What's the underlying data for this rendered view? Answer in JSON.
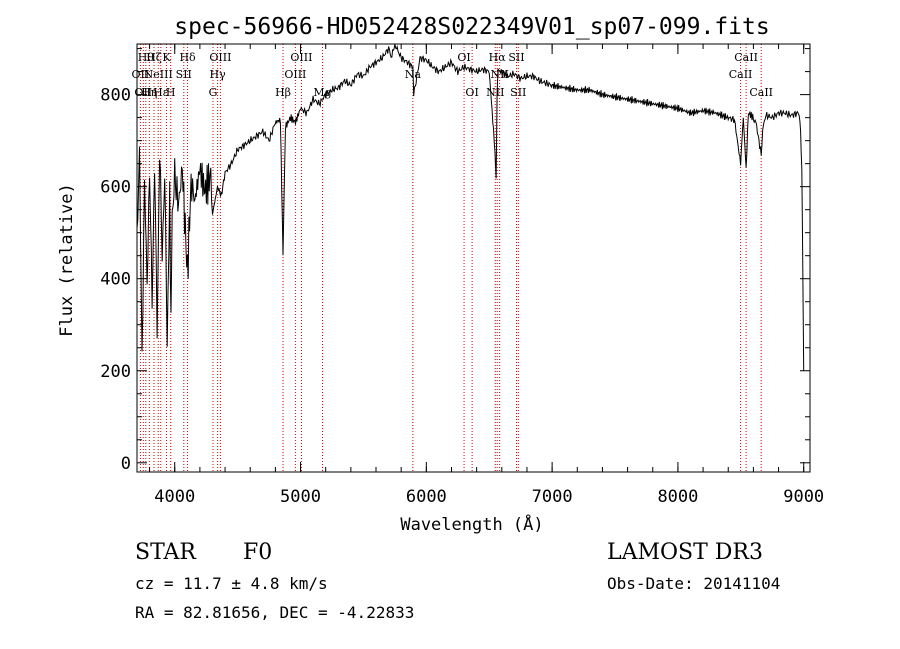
{
  "chart_data": {
    "type": "line",
    "title": "spec-56966-HD052428S022349V01_sp07-099.fits",
    "xlabel": "Wavelength (Å)",
    "ylabel": "Flux (relative)",
    "xlim": [
      3700,
      9050
    ],
    "ylim": [
      -20,
      910
    ],
    "xticks": [
      4000,
      5000,
      6000,
      7000,
      8000,
      9000
    ],
    "yticks": [
      0,
      200,
      400,
      600,
      800
    ],
    "series": [
      {
        "name": "flux",
        "x": [
          3700,
          3720,
          3740,
          3760,
          3780,
          3800,
          3820,
          3840,
          3860,
          3880,
          3900,
          3920,
          3940,
          3960,
          3970,
          3980,
          4000,
          4030,
          4060,
          4101,
          4130,
          4160,
          4200,
          4240,
          4280,
          4300,
          4340,
          4370,
          4400,
          4450,
          4500,
          4550,
          4600,
          4650,
          4700,
          4750,
          4800,
          4840,
          4861,
          4880,
          4920,
          4960,
          5000,
          5050,
          5100,
          5150,
          5200,
          5250,
          5300,
          5350,
          5400,
          5450,
          5500,
          5550,
          5600,
          5650,
          5700,
          5720,
          5750,
          5800,
          5850,
          5893,
          5900,
          5950,
          6000,
          6050,
          6100,
          6150,
          6200,
          6250,
          6300,
          6350,
          6400,
          6450,
          6500,
          6540,
          6555,
          6563,
          6570,
          6590,
          6620,
          6650,
          6700,
          6750,
          6800,
          6850,
          6900,
          6950,
          7000,
          7100,
          7200,
          7300,
          7400,
          7500,
          7600,
          7700,
          7800,
          7900,
          8000,
          8100,
          8200,
          8300,
          8400,
          8450,
          8498,
          8520,
          8542,
          8560,
          8600,
          8620,
          8662,
          8680,
          8700,
          8750,
          8800,
          8850,
          8900,
          8950,
          8970,
          8985,
          9000
        ],
        "y": [
          520,
          640,
          260,
          580,
          420,
          600,
          380,
          620,
          320,
          650,
          480,
          600,
          280,
          580,
          300,
          560,
          620,
          560,
          640,
          410,
          610,
          570,
          640,
          590,
          620,
          540,
          600,
          580,
          630,
          650,
          680,
          690,
          700,
          710,
          720,
          700,
          740,
          745,
          450,
          730,
          750,
          740,
          770,
          760,
          790,
          780,
          800,
          810,
          815,
          830,
          820,
          845,
          840,
          860,
          870,
          880,
          900,
          880,
          910,
          880,
          870,
          860,
          800,
          880,
          875,
          860,
          850,
          860,
          870,
          850,
          860,
          855,
          850,
          855,
          850,
          700,
          620,
          800,
          860,
          850,
          845,
          840,
          845,
          835,
          840,
          840,
          830,
          825,
          820,
          815,
          810,
          810,
          800,
          795,
          790,
          785,
          780,
          775,
          770,
          760,
          765,
          760,
          750,
          745,
          650,
          750,
          640,
          760,
          750,
          740,
          670,
          740,
          755,
          750,
          760,
          760,
          755,
          760,
          750,
          640,
          200
        ]
      }
    ],
    "line_labels": [
      {
        "wavelength": 3727,
        "label": "OII",
        "row": 2
      },
      {
        "wavelength": 3750,
        "label": "OII",
        "row": 3
      },
      {
        "wavelength": 3770,
        "label": "Hθ",
        "row": 1
      },
      {
        "wavelength": 3798,
        "label": "Hη",
        "row": 3
      },
      {
        "wavelength": 3835,
        "label": "Hζ",
        "row": 1
      },
      {
        "wavelength": 3869,
        "label": "NeIII",
        "row": 2
      },
      {
        "wavelength": 3889,
        "label": "Hε",
        "row": 3
      },
      {
        "wavelength": 3934,
        "label": "K",
        "row": 1
      },
      {
        "wavelength": 3968,
        "label": "H",
        "row": 3
      },
      {
        "wavelength": 4072,
        "label": "SII",
        "row": 2
      },
      {
        "wavelength": 4102,
        "label": "Hδ",
        "row": 1
      },
      {
        "wavelength": 4304,
        "label": "G",
        "row": 3
      },
      {
        "wavelength": 4341,
        "label": "Hγ",
        "row": 2
      },
      {
        "wavelength": 4363,
        "label": "OIII",
        "row": 1
      },
      {
        "wavelength": 4861,
        "label": "Hβ",
        "row": 3
      },
      {
        "wavelength": 4959,
        "label": "OIII",
        "row": 2
      },
      {
        "wavelength": 5007,
        "label": "OIII",
        "row": 1
      },
      {
        "wavelength": 5175,
        "label": "Mg",
        "row": 3
      },
      {
        "wavelength": 5893,
        "label": "Na",
        "row": 2
      },
      {
        "wavelength": 6300,
        "label": "OI",
        "row": 1
      },
      {
        "wavelength": 6364,
        "label": "OI",
        "row": 3
      },
      {
        "wavelength": 6548,
        "label": "NII",
        "row": 3
      },
      {
        "wavelength": 6563,
        "label": "Hα",
        "row": 1
      },
      {
        "wavelength": 6583,
        "label": "NII",
        "row": 2
      },
      {
        "wavelength": 6717,
        "label": "SII",
        "row": 1
      },
      {
        "wavelength": 6731,
        "label": "SII",
        "row": 3
      },
      {
        "wavelength": 8498,
        "label": "CaII",
        "row": 2
      },
      {
        "wavelength": 8542,
        "label": "CaII",
        "row": 1
      },
      {
        "wavelength": 8662,
        "label": "CaII",
        "row": 3
      }
    ]
  },
  "info": {
    "object_type": "STAR",
    "subclass": "F0",
    "survey": "LAMOST DR3",
    "cz": "cz = 11.7 ± 4.8 km/s",
    "obs_date": "Obs-Date: 20141104",
    "radec": "RA =  82.81656, DEC =  -4.22833"
  },
  "colors": {
    "line_marker": "#cc0000",
    "spectrum": "#000000"
  }
}
